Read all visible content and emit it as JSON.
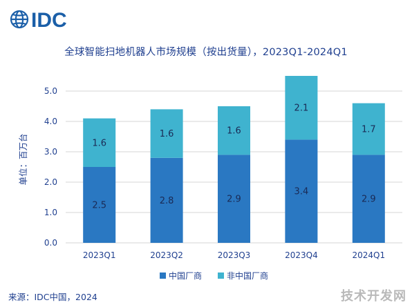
{
  "logo": {
    "text": "IDC",
    "color": "#1b5fa8"
  },
  "title": "全球智能扫地机器人市场规模（按出货量），2023Q1-2024Q1",
  "source": "来源：IDC中国，2024",
  "watermark": "技术开发网",
  "colors": {
    "china": "#2a78c2",
    "non_china": "#3fb3cf",
    "text": "#1f3f8f",
    "grid": "#d6d6d6"
  },
  "chart_data": {
    "type": "bar",
    "stacked": true,
    "categories": [
      "2023Q1",
      "2023Q2",
      "2023Q3",
      "2023Q4",
      "2024Q1"
    ],
    "series": [
      {
        "name": "中国厂商",
        "values": [
          2.5,
          2.8,
          2.9,
          3.4,
          2.9
        ]
      },
      {
        "name": "非中国厂商",
        "values": [
          1.6,
          1.6,
          1.6,
          2.1,
          1.7
        ]
      }
    ],
    "ylabel": "单位：百万台",
    "ylim": [
      0,
      5.5
    ],
    "yticks": [
      "0.0",
      "1.0",
      "2.0",
      "3.0",
      "4.0",
      "5.0"
    ],
    "grid": true,
    "legend": "bottom-center"
  }
}
